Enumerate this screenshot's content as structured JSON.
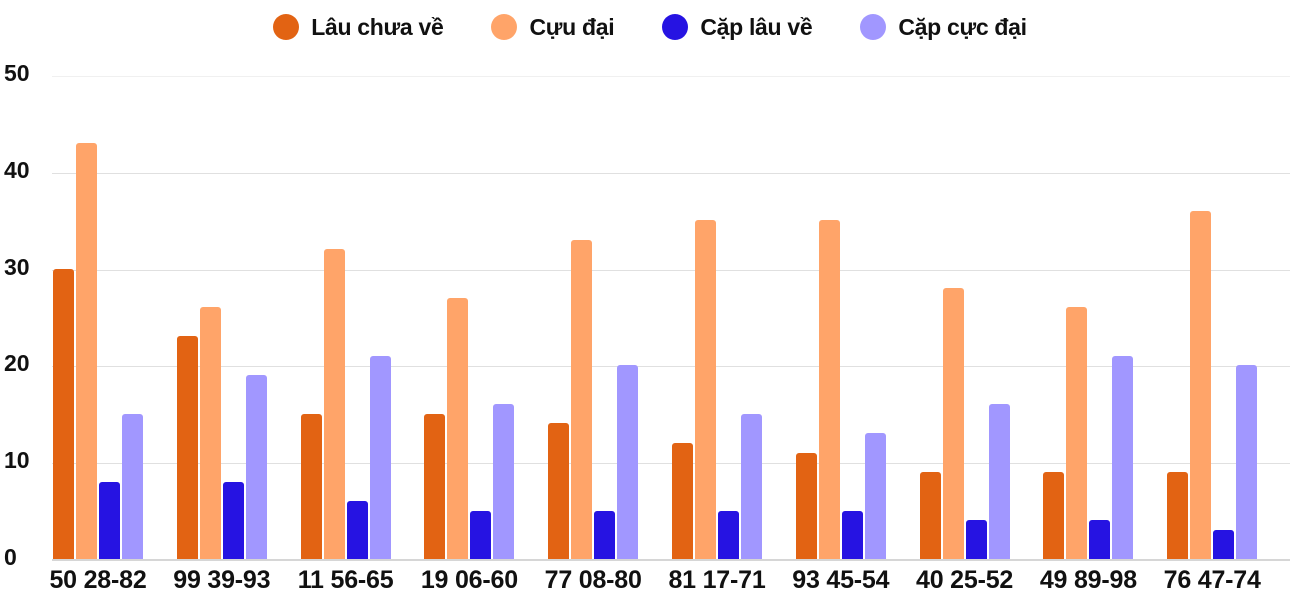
{
  "chart_data": {
    "type": "bar",
    "title": "",
    "xlabel": "",
    "ylabel": "",
    "ylim": [
      0,
      50
    ],
    "yticks": [
      0,
      10,
      20,
      30,
      40,
      50
    ],
    "grid": true,
    "legend_position": "top",
    "categories": [
      "50 28-82",
      "99 39-93",
      "11 56-65",
      "19 06-60",
      "77 08-80",
      "81 17-71",
      "93 45-54",
      "40 25-52",
      "49 89-98",
      "76 47-74"
    ],
    "series": [
      {
        "name": "Lâu chưa về",
        "color": "#e26313",
        "values": [
          30,
          23,
          15,
          15,
          14,
          12,
          11,
          9,
          9,
          9
        ]
      },
      {
        "name": "Cựu đại",
        "color": "#ffa469",
        "values": [
          43,
          26,
          32,
          27,
          33,
          35,
          35,
          28,
          26,
          36
        ]
      },
      {
        "name": "Cặp lâu về",
        "color": "#2613e2",
        "values": [
          8,
          8,
          6,
          5,
          5,
          5,
          5,
          4,
          4,
          3
        ]
      },
      {
        "name": "Cặp cực đại",
        "color": "#a197ff",
        "values": [
          15,
          19,
          21,
          16,
          20,
          15,
          13,
          16,
          21,
          20
        ]
      }
    ]
  },
  "legend": {
    "items": [
      {
        "label": "Lâu chưa về",
        "color": "#e26313"
      },
      {
        "label": "Cựu đại",
        "color": "#ffa469"
      },
      {
        "label": "Cặp lâu về",
        "color": "#2613e2"
      },
      {
        "label": "Cặp cực đại",
        "color": "#a197ff"
      }
    ]
  },
  "axis": {
    "y_labels": [
      "50",
      "40",
      "30",
      "20",
      "10",
      "0"
    ]
  }
}
